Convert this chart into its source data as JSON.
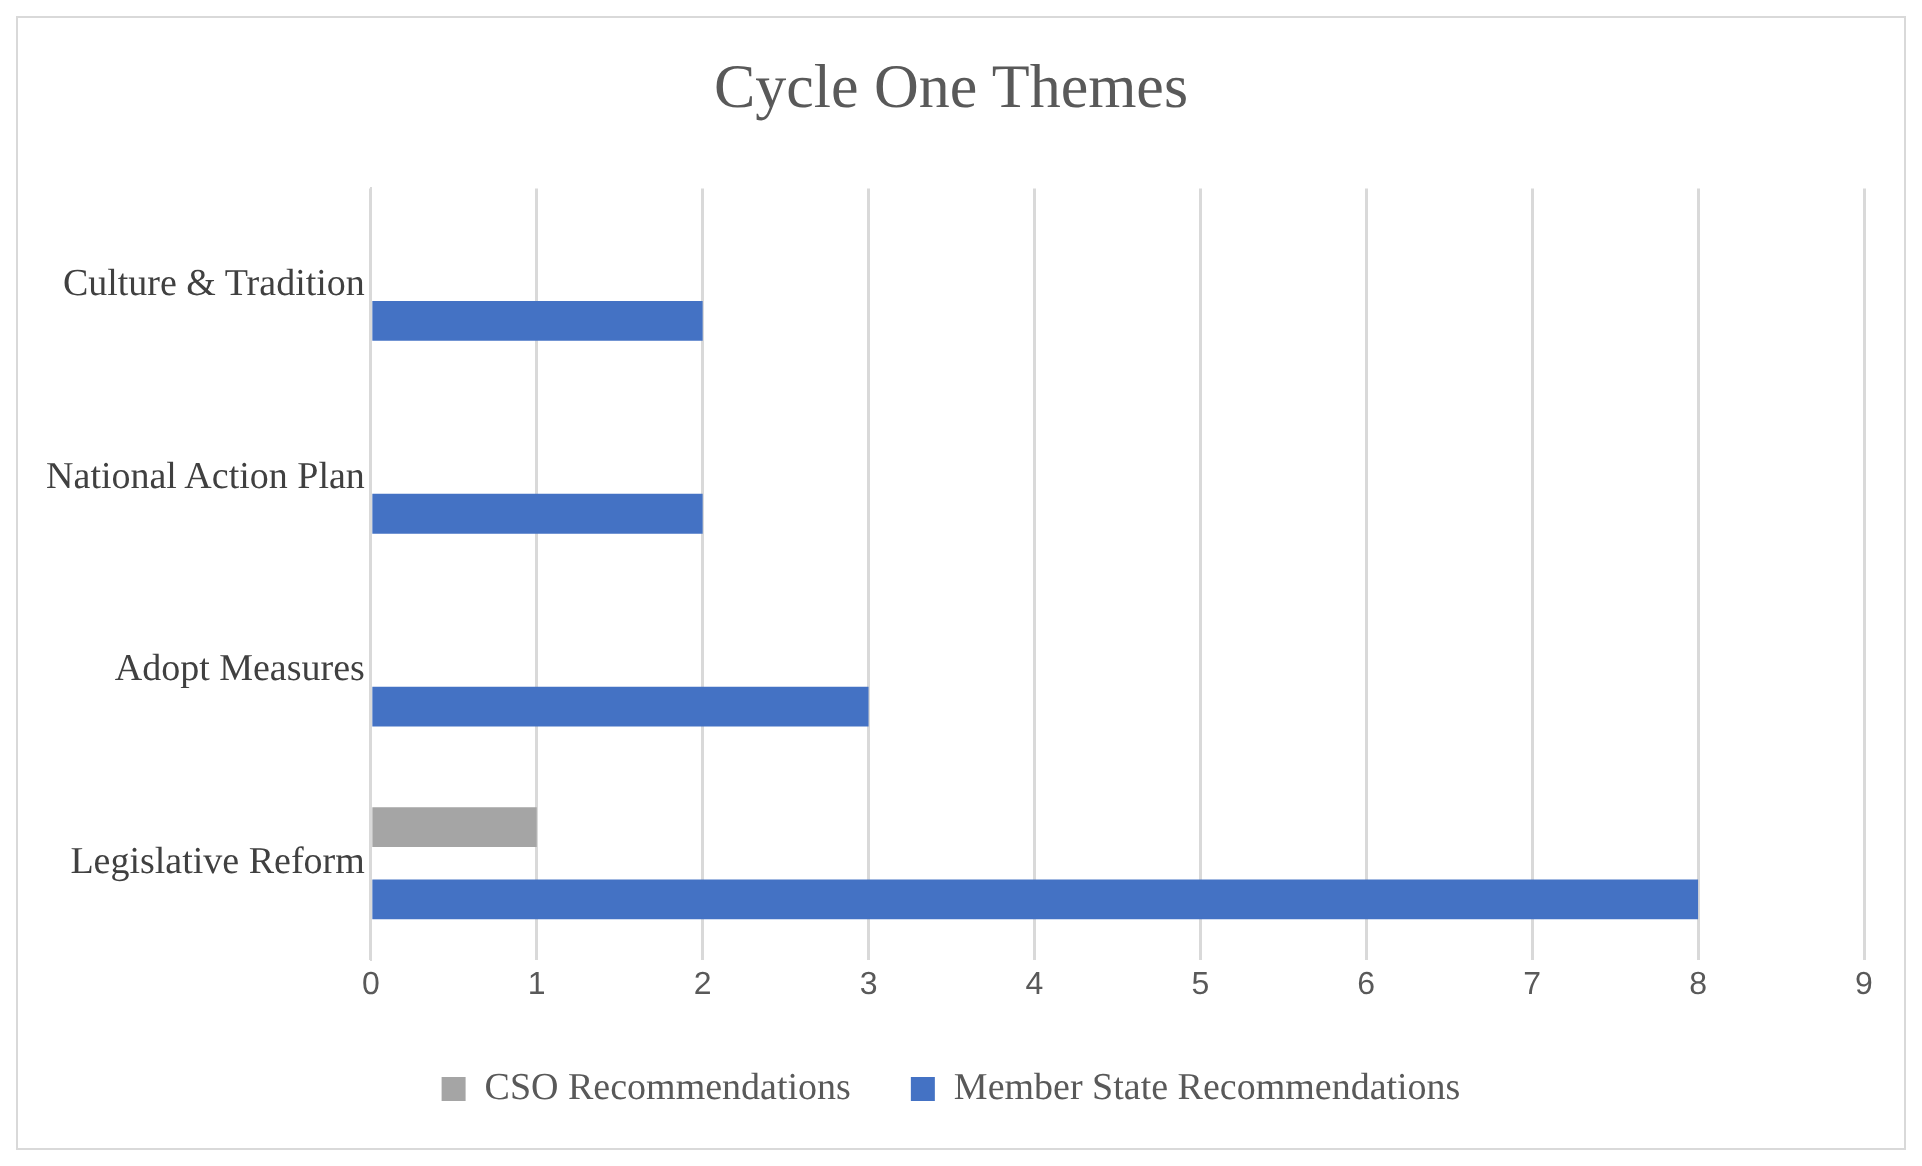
{
  "chart_data": {
    "type": "bar",
    "orientation": "horizontal",
    "title": "Cycle One Themes",
    "categories": [
      "Culture & Tradition",
      "National Action Plan",
      "Adopt Measures",
      "Legislative Reform"
    ],
    "series": [
      {
        "name": "CSO Recommendations",
        "color": "#a5a5a5",
        "values": [
          0,
          0,
          0,
          1
        ]
      },
      {
        "name": "Member State Recommendations",
        "color": "#4472c4",
        "values": [
          2,
          2,
          3,
          8
        ]
      }
    ],
    "xlim": [
      0,
      9
    ],
    "xticks": [
      0,
      1,
      2,
      3,
      4,
      5,
      6,
      7,
      8,
      9
    ],
    "grid": "x",
    "legend": "bottom"
  }
}
